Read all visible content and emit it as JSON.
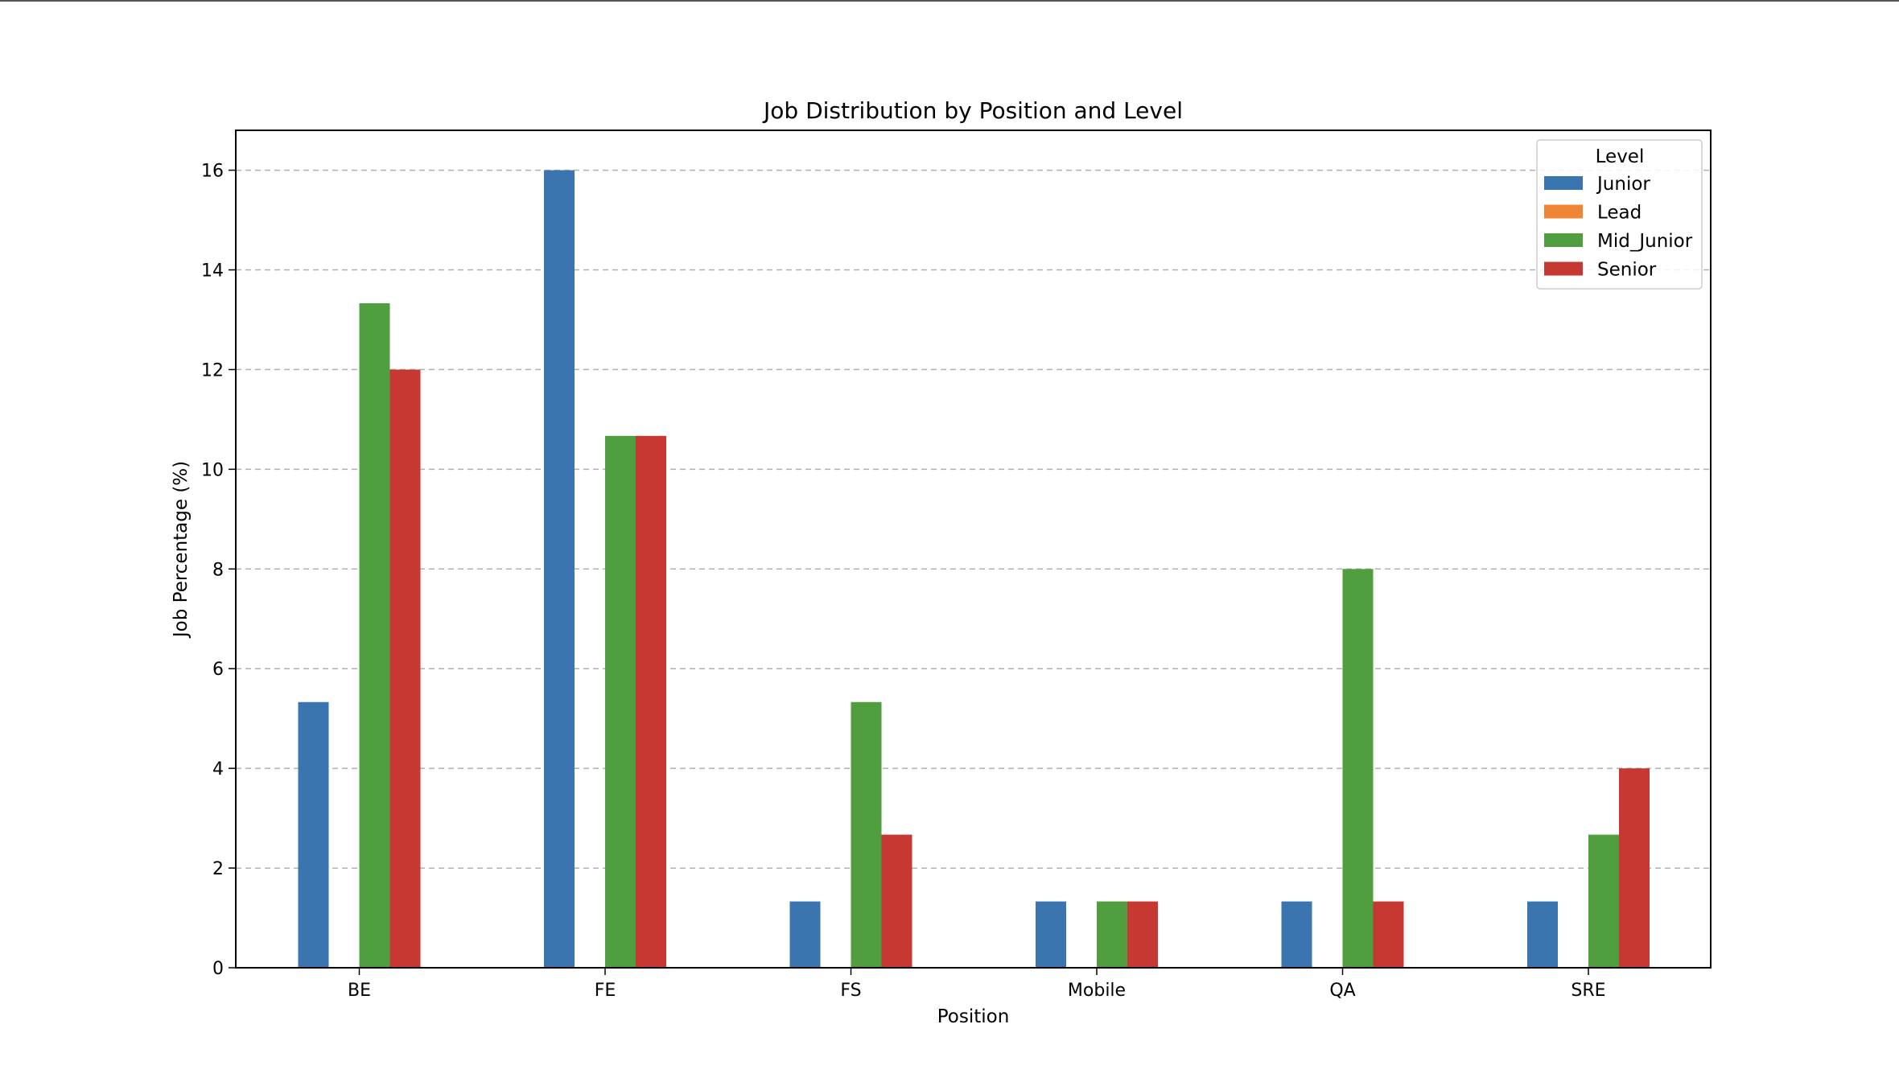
{
  "chart_data": {
    "type": "bar",
    "title": "Job Distribution by Position and Level",
    "xlabel": "Position",
    "ylabel": "Job Percentage (%)",
    "categories": [
      "BE",
      "FE",
      "FS",
      "Mobile",
      "QA",
      "SRE"
    ],
    "ylim": [
      0,
      16.8
    ],
    "yticks": [
      0,
      2,
      4,
      6,
      8,
      10,
      12,
      14,
      16
    ],
    "grid": "y-dashed",
    "legend": {
      "title": "Level",
      "placement": "top-right"
    },
    "series": [
      {
        "name": "Junior",
        "color": "#3a75af",
        "values": [
          5.33,
          16.0,
          1.33,
          1.33,
          1.33,
          1.33
        ]
      },
      {
        "name": "Lead",
        "color": "#ef8636",
        "values": [
          0,
          0,
          0,
          0,
          0,
          0
        ]
      },
      {
        "name": "Mid_Junior",
        "color": "#519e3e",
        "values": [
          13.33,
          10.67,
          5.33,
          1.33,
          8.0,
          2.67
        ]
      },
      {
        "name": "Senior",
        "color": "#c53932",
        "values": [
          12.0,
          10.67,
          2.67,
          1.33,
          1.33,
          4.0
        ]
      }
    ]
  }
}
